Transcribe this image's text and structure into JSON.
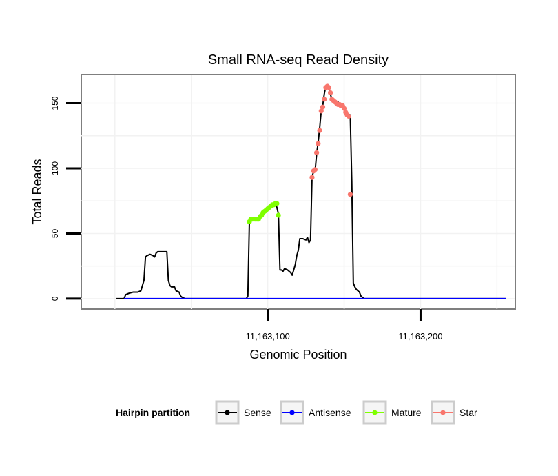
{
  "chart_data": {
    "type": "line",
    "title": "Small RNA-seq Read Density",
    "xlabel": "Genomic Position",
    "ylabel": "Total Reads",
    "xlim": [
      11162978,
      11163262
    ],
    "ylim": [
      -8,
      172
    ],
    "grid": true,
    "x_ticks": [
      {
        "value": 11163100,
        "label": "11,163,100"
      },
      {
        "value": 11163200,
        "label": "11,163,200"
      }
    ],
    "y_ticks": [
      {
        "value": 0,
        "label": "0"
      },
      {
        "value": 50,
        "label": "50"
      },
      {
        "value": 100,
        "label": "100"
      },
      {
        "value": 150,
        "label": "150"
      }
    ],
    "legend": {
      "title": "Hairpin partition",
      "position": "bottom",
      "items": [
        {
          "name": "Sense",
          "color": "#000000"
        },
        {
          "name": "Antisense",
          "color": "#0000ff"
        },
        {
          "name": "Mature",
          "color": "#7fff00"
        },
        {
          "name": "Star",
          "color": "#f8766d"
        }
      ]
    },
    "series": [
      {
        "name": "Sense",
        "color": "#000000",
        "points": [
          [
            11163001,
            0
          ],
          [
            11163006,
            0
          ],
          [
            11163007,
            3
          ],
          [
            11163009,
            4
          ],
          [
            11163012,
            5
          ],
          [
            11163015,
            5
          ],
          [
            11163017,
            6
          ],
          [
            11163018,
            10
          ],
          [
            11163019,
            14
          ],
          [
            11163020,
            32
          ],
          [
            11163021,
            33
          ],
          [
            11163023,
            34
          ],
          [
            11163025,
            33
          ],
          [
            11163026,
            32
          ],
          [
            11163027,
            35
          ],
          [
            11163028,
            36
          ],
          [
            11163031,
            36
          ],
          [
            11163034,
            36
          ],
          [
            11163035,
            14
          ],
          [
            11163036,
            10
          ],
          [
            11163037,
            9
          ],
          [
            11163039,
            9
          ],
          [
            11163040,
            6
          ],
          [
            11163042,
            5
          ],
          [
            11163043,
            2
          ],
          [
            11163044,
            1
          ],
          [
            11163046,
            0
          ],
          [
            11163070,
            0
          ],
          [
            11163086,
            0
          ],
          [
            11163087,
            2
          ],
          [
            11163088,
            59
          ],
          [
            11163089,
            61
          ],
          [
            11163091,
            61
          ],
          [
            11163094,
            61
          ],
          [
            11163097,
            65
          ],
          [
            11163099,
            68
          ],
          [
            11163101,
            70
          ],
          [
            11163103,
            72
          ],
          [
            11163105,
            73
          ],
          [
            11163106,
            70
          ],
          [
            11163107,
            65
          ],
          [
            11163108,
            22
          ],
          [
            11163109,
            22
          ],
          [
            11163110,
            21
          ],
          [
            11163111,
            23
          ],
          [
            11163113,
            22
          ],
          [
            11163115,
            20
          ],
          [
            11163116,
            18
          ],
          [
            11163118,
            26
          ],
          [
            11163119,
            33
          ],
          [
            11163120,
            37
          ],
          [
            11163121,
            46
          ],
          [
            11163123,
            46
          ],
          [
            11163125,
            45
          ],
          [
            11163126,
            47
          ],
          [
            11163127,
            43
          ],
          [
            11163128,
            45
          ],
          [
            11163129,
            94
          ],
          [
            11163130,
            97
          ],
          [
            11163131,
            98
          ],
          [
            11163132,
            111
          ],
          [
            11163133,
            120
          ],
          [
            11163134,
            131
          ],
          [
            11163135,
            144
          ],
          [
            11163136,
            148
          ],
          [
            11163137,
            157
          ],
          [
            11163138,
            163
          ],
          [
            11163140,
            162
          ],
          [
            11163141,
            157
          ],
          [
            11163142,
            153
          ],
          [
            11163144,
            152
          ],
          [
            11163146,
            151
          ],
          [
            11163147,
            149
          ],
          [
            11163149,
            149
          ],
          [
            11163150,
            148
          ],
          [
            11163151,
            144
          ],
          [
            11163152,
            142
          ],
          [
            11163154,
            141
          ],
          [
            11163155,
            90
          ],
          [
            11163156,
            12
          ],
          [
            11163157,
            9
          ],
          [
            11163158,
            7
          ],
          [
            11163159,
            6
          ],
          [
            11163160,
            5
          ],
          [
            11163161,
            2
          ],
          [
            11163163,
            0
          ],
          [
            11163200,
            0
          ],
          [
            11163250,
            0
          ],
          [
            11163256,
            0
          ]
        ]
      },
      {
        "name": "Antisense",
        "color": "#0000ff",
        "points": [
          [
            11163006,
            0
          ],
          [
            11163256,
            0
          ]
        ]
      },
      {
        "name": "Mature",
        "color": "#7fff00",
        "points": [
          [
            11163088,
            59
          ],
          [
            11163089,
            61
          ],
          [
            11163090,
            61
          ],
          [
            11163091,
            61
          ],
          [
            11163092,
            61
          ],
          [
            11163093,
            61
          ],
          [
            11163094,
            61
          ],
          [
            11163095,
            63
          ],
          [
            11163096,
            64
          ],
          [
            11163097,
            66
          ],
          [
            11163098,
            67
          ],
          [
            11163099,
            68
          ],
          [
            11163100,
            69
          ],
          [
            11163101,
            70
          ],
          [
            11163102,
            71
          ],
          [
            11163103,
            72
          ],
          [
            11163104,
            72
          ],
          [
            11163105,
            73
          ],
          [
            11163106,
            73
          ],
          [
            11163107,
            64
          ]
        ]
      },
      {
        "name": "Star",
        "color": "#f8766d",
        "points": [
          [
            11163129,
            93
          ],
          [
            11163130,
            98
          ],
          [
            11163131,
            99
          ],
          [
            11163132,
            112
          ],
          [
            11163133,
            119
          ],
          [
            11163134,
            129
          ],
          [
            11163135,
            144
          ],
          [
            11163136,
            147
          ],
          [
            11163137,
            153
          ],
          [
            11163138,
            162
          ],
          [
            11163139,
            163
          ],
          [
            11163140,
            162
          ],
          [
            11163141,
            158
          ],
          [
            11163142,
            153
          ],
          [
            11163143,
            152
          ],
          [
            11163144,
            151
          ],
          [
            11163145,
            150
          ],
          [
            11163146,
            149
          ],
          [
            11163147,
            149
          ],
          [
            11163148,
            148
          ],
          [
            11163149,
            148
          ],
          [
            11163150,
            146
          ],
          [
            11163151,
            143
          ],
          [
            11163152,
            141
          ],
          [
            11163153,
            140
          ],
          [
            11163154,
            80
          ]
        ]
      }
    ]
  }
}
